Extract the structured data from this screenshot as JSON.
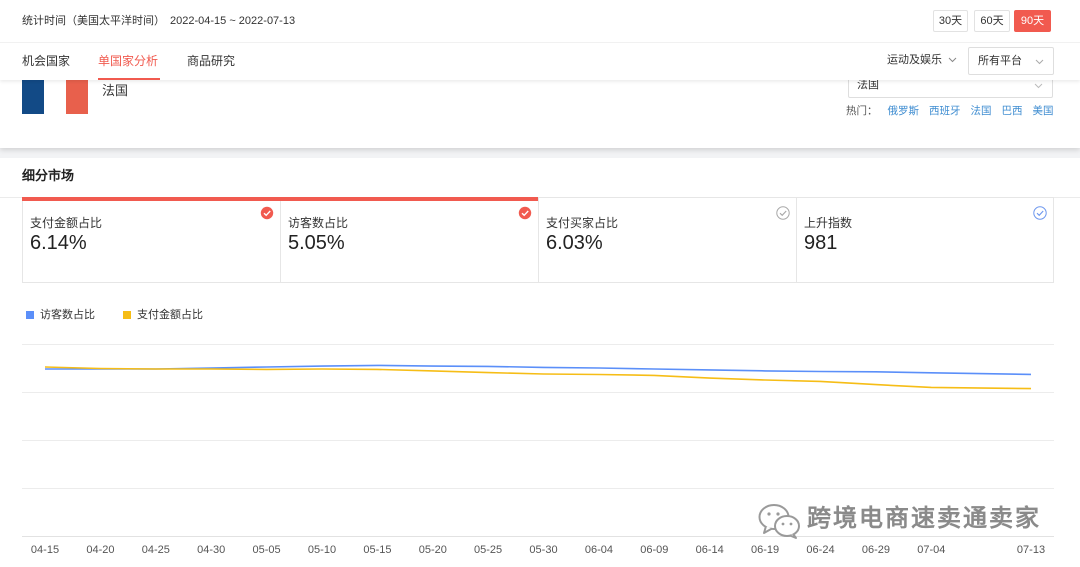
{
  "colors": {
    "accent": "#f15a4f",
    "link": "#3f8dd1",
    "flag_blue": "#124a86",
    "flag_red": "#e8604c"
  },
  "icons": {
    "dropdown": "chevron-down-icon",
    "metric_check": "check-circle-icon",
    "watermark_logo": "wechat-icon"
  },
  "header": {
    "stat_label": "统计时间（美国太平洋时间）",
    "date_range": "2022-04-15 ~ 2022-07-13",
    "range_buttons": [
      {
        "label": "30天",
        "active": false
      },
      {
        "label": "60天",
        "active": false
      },
      {
        "label": "90天",
        "active": true
      }
    ]
  },
  "nav": {
    "tabs": [
      {
        "label": "机会国家",
        "active": false
      },
      {
        "label": "单国家分析",
        "active": true
      },
      {
        "label": "商品研究",
        "active": false
      }
    ],
    "category_dropdown": "运动及娱乐",
    "platform_select": "所有平台"
  },
  "country": {
    "name": "法国",
    "select_value": "法国",
    "hot_label": "热门：",
    "hot_countries": [
      "俄罗斯",
      "西班牙",
      "法国",
      "巴西",
      "美国"
    ]
  },
  "segment": {
    "title": "细分市场",
    "metrics": [
      {
        "label": "支付金额占比",
        "value": "6.14%",
        "selected": true,
        "check_style": "filled",
        "check_color": "#f15a4f"
      },
      {
        "label": "访客数占比",
        "value": "5.05%",
        "selected": true,
        "check_style": "filled",
        "check_color": "#f15a4f"
      },
      {
        "label": "支付买家占比",
        "value": "6.03%",
        "selected": false,
        "check_style": "outline",
        "check_color": "#a8a8a8"
      },
      {
        "label": "上升指数",
        "value": "981",
        "selected": false,
        "check_style": "outline",
        "check_color": "#6d97ee"
      }
    ]
  },
  "watermark": {
    "text": "跨境电商速卖通卖家"
  },
  "chart_data": {
    "type": "line",
    "x": [
      "04-15",
      "04-20",
      "04-25",
      "04-30",
      "05-05",
      "05-10",
      "05-15",
      "05-20",
      "05-25",
      "05-30",
      "06-04",
      "06-09",
      "06-14",
      "06-19",
      "06-24",
      "06-29",
      "07-04",
      "07-13"
    ],
    "series": [
      {
        "name": "访客数占比",
        "color": "#5b8ff9",
        "y_axis": "left",
        "values": [
          5.22,
          5.22,
          5.22,
          5.25,
          5.28,
          5.31,
          5.33,
          5.31,
          5.3,
          5.27,
          5.25,
          5.22,
          5.19,
          5.16,
          5.14,
          5.13,
          5.1,
          5.05
        ]
      },
      {
        "name": "支付金额占比",
        "color": "#f6bd16",
        "y_axis": "right",
        "values": [
          7.04,
          6.98,
          6.96,
          6.96,
          6.94,
          6.96,
          6.94,
          6.88,
          6.81,
          6.75,
          6.73,
          6.69,
          6.58,
          6.5,
          6.44,
          6.31,
          6.19,
          6.14
        ]
      }
    ],
    "y_axes": {
      "left": {
        "range": [
          0,
          6
        ],
        "tick_labels_shown": false
      },
      "right": {
        "range": [
          0,
          8
        ],
        "tick_labels_shown": false
      }
    },
    "grid": true,
    "legend": "top-left"
  }
}
